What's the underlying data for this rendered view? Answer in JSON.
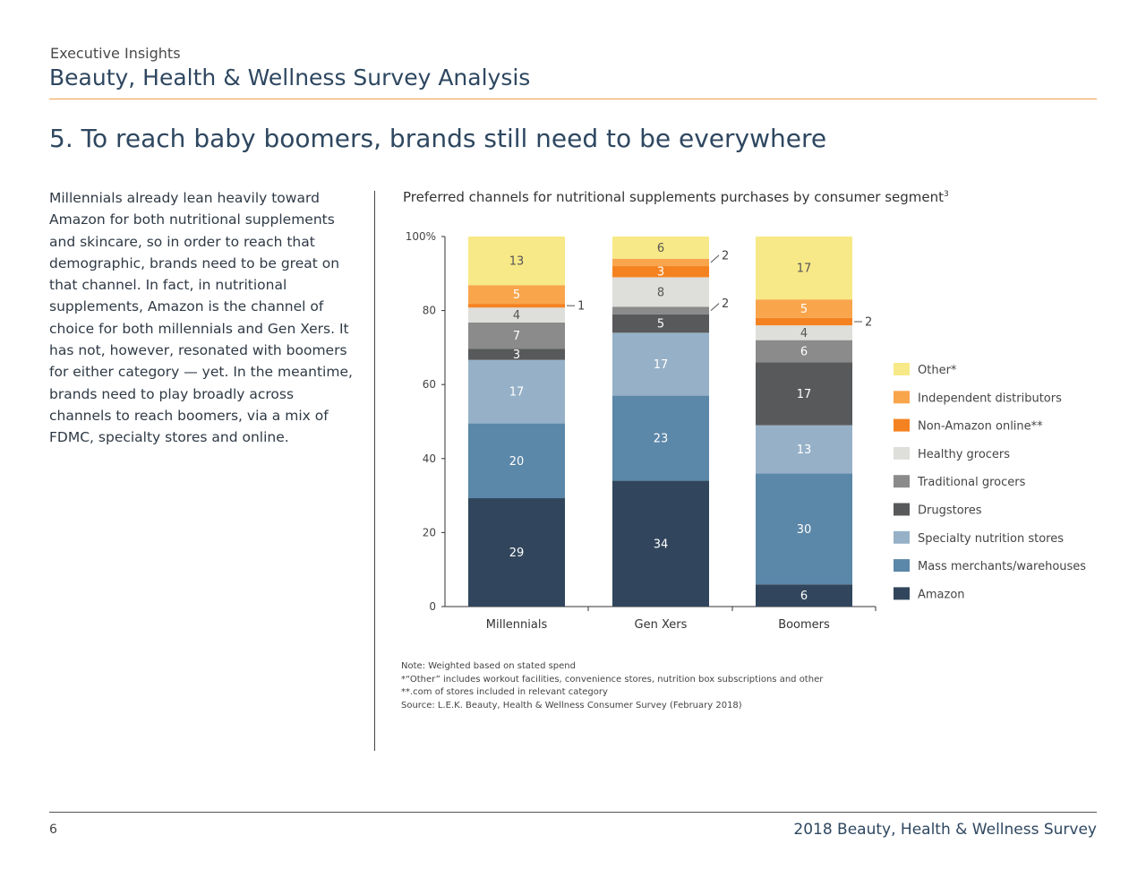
{
  "header": {
    "kicker": "Executive Insights",
    "title": "Beauty, Health & Wellness Survey Analysis"
  },
  "section_title": "5. To reach baby boomers, brands still need to be everywhere",
  "body_text": "Millennials already lean heavily toward Amazon for both nutritional supplements and skincare, so in order to reach that demographic, brands need to be great on that channel. In fact, in nutritional supplements, Amazon is the channel of choice for both millennials and Gen Xers. It has not, however, resonated with boomers for either category — yet. In the meantime, brands need to play broadly across channels to reach boomers, via a mix of FDMC, specialty stores and online.",
  "chart_title": "Preferred channels for nutritional supplements purchases by consumer segment",
  "chart_title_footnote": "3",
  "chart_data": {
    "type": "bar",
    "stacked": true,
    "categories": [
      "Millennials",
      "Gen Xers",
      "Boomers"
    ],
    "ylim": [
      0,
      100
    ],
    "yticks": [
      "0",
      "20",
      "40",
      "60",
      "80",
      "100%"
    ],
    "ytick_values": [
      0,
      20,
      40,
      60,
      80,
      100
    ],
    "legend_position": "right",
    "series": [
      {
        "name": "Amazon",
        "color": "#31465c",
        "label_color": "#ffffff",
        "values": [
          29,
          34,
          6
        ],
        "labels": [
          "29",
          "34",
          "6"
        ]
      },
      {
        "name": "Mass merchants/warehouses",
        "color": "#5b87a8",
        "label_color": "#ffffff",
        "values": [
          20,
          23,
          30
        ],
        "labels": [
          "20",
          "23",
          "30"
        ]
      },
      {
        "name": "Specialty nutrition stores",
        "color": "#96b1c7",
        "label_color": "#ffffff",
        "values": [
          17,
          17,
          13
        ],
        "labels": [
          "17",
          "17",
          "13"
        ]
      },
      {
        "name": "Drugstores",
        "color": "#58595b",
        "label_color": "#ffffff",
        "values": [
          3,
          5,
          17
        ],
        "labels": [
          "3",
          "5",
          "17"
        ]
      },
      {
        "name": "Traditional grocers",
        "color": "#8b8b8b",
        "label_color": "#ffffff",
        "values": [
          7,
          2,
          6
        ],
        "labels": [
          "7",
          "2",
          "6"
        ]
      },
      {
        "name": "Healthy grocers",
        "color": "#dededa",
        "label_color": "#555555",
        "values": [
          4,
          8,
          4
        ],
        "labels": [
          "4",
          "8",
          "4"
        ]
      },
      {
        "name": "Non-Amazon online**",
        "color": "#f58220",
        "label_color": "#ffffff",
        "values": [
          1,
          3,
          2
        ],
        "labels": [
          "1",
          "3",
          "2"
        ]
      },
      {
        "name": "Independent distributors",
        "color": "#f9a54c",
        "label_color": "#ffffff",
        "values": [
          5,
          2,
          5
        ],
        "labels": [
          "5",
          "2",
          "5"
        ]
      },
      {
        "name": "Other*",
        "color": "#f7e987",
        "label_color": "#555555",
        "values": [
          13,
          6,
          17
        ],
        "labels": [
          "13",
          "6",
          "17"
        ]
      }
    ]
  },
  "notes": [
    "Note: Weighted based on stated spend",
    "*“Other” includes workout facilities, convenience stores, nutrition box subscriptions and other",
    "**.com of stores included in relevant category",
    "Source: L.E.K. Beauty, Health & Wellness Consumer Survey (February 2018)"
  ],
  "footer": {
    "page_number": "6",
    "title": "2018 Beauty, Health & Wellness Survey"
  }
}
